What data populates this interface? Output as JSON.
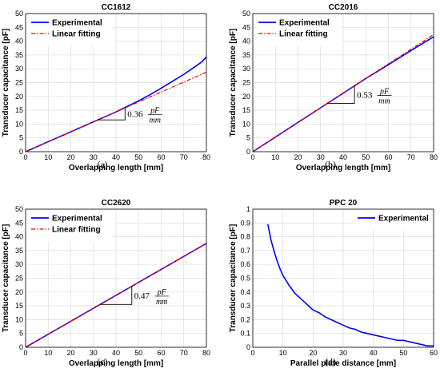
{
  "chart_data": [
    {
      "panel": "a",
      "type": "line",
      "title": "CC1612",
      "caption": "(a)",
      "xlabel": "Overlapping length [mm]",
      "ylabel": "Transducer capacitance [pF]",
      "xlim": [
        0,
        80
      ],
      "ylim": [
        0,
        50
      ],
      "xticks": [
        0,
        10,
        20,
        30,
        40,
        50,
        60,
        70,
        80
      ],
      "yticks": [
        0,
        5,
        10,
        15,
        20,
        25,
        30,
        35,
        40,
        45,
        50
      ],
      "grid": true,
      "legend": "top-left",
      "series": [
        {
          "name": "Experimental",
          "color": "#0000ff",
          "style": "solid",
          "x": [
            0,
            10,
            20,
            30,
            40,
            45,
            50,
            55,
            60,
            65,
            70,
            75,
            78,
            80
          ],
          "y": [
            0,
            3.6,
            7.2,
            10.8,
            14.4,
            16.4,
            18.4,
            20.6,
            23.0,
            25.5,
            28.0,
            30.8,
            32.5,
            34.3
          ]
        },
        {
          "name": "Linear fitting",
          "color": "#ff0000",
          "style": "dashdot",
          "x": [
            0,
            80
          ],
          "y": [
            0,
            28.8
          ]
        }
      ],
      "annotation": {
        "value": "0.36",
        "unit_num": "pF",
        "unit_den": "mm",
        "x0": 32,
        "x1": 44,
        "base": "fit"
      }
    },
    {
      "panel": "b",
      "type": "line",
      "title": "CC2016",
      "caption": "(b)",
      "xlabel": "Overlapping length [mm]",
      "ylabel": "Transducer capacitance [pF]",
      "xlim": [
        0,
        80
      ],
      "ylim": [
        0,
        50
      ],
      "xticks": [
        0,
        10,
        20,
        30,
        40,
        50,
        60,
        70,
        80
      ],
      "yticks": [
        0,
        5,
        10,
        15,
        20,
        25,
        30,
        35,
        40,
        45,
        50
      ],
      "grid": true,
      "legend": "top-left",
      "series": [
        {
          "name": "Experimental",
          "color": "#0000ff",
          "style": "solid",
          "x": [
            0,
            10,
            20,
            30,
            40,
            50,
            60,
            70,
            80
          ],
          "y": [
            0,
            5.3,
            10.6,
            15.9,
            21.2,
            26.5,
            31.5,
            36.6,
            41.6
          ]
        },
        {
          "name": "Linear fitting",
          "color": "#ff0000",
          "style": "dashdot",
          "x": [
            0,
            80
          ],
          "y": [
            0,
            42.4
          ]
        }
      ],
      "annotation": {
        "value": "0.53",
        "unit_num": "pF",
        "unit_den": "mm",
        "x0": 33,
        "x1": 45,
        "base": "fit"
      }
    },
    {
      "panel": "c",
      "type": "line",
      "title": "CC2620",
      "caption": "(c)",
      "xlabel": "Overlapping length [mm]",
      "ylabel": "Transducer capacitance [pF]",
      "xlim": [
        0,
        80
      ],
      "ylim": [
        0,
        50
      ],
      "xticks": [
        0,
        10,
        20,
        30,
        40,
        50,
        60,
        70,
        80
      ],
      "yticks": [
        0,
        5,
        10,
        15,
        20,
        25,
        30,
        35,
        40,
        45,
        50
      ],
      "grid": true,
      "legend": "top-left",
      "series": [
        {
          "name": "Experimental",
          "color": "#0000ff",
          "style": "solid",
          "x": [
            0,
            10,
            20,
            30,
            40,
            50,
            60,
            70,
            80
          ],
          "y": [
            0,
            4.7,
            9.4,
            14.1,
            18.8,
            23.5,
            28.2,
            32.9,
            37.6
          ]
        },
        {
          "name": "Linear fitting",
          "color": "#ff0000",
          "style": "dashdot",
          "x": [
            0,
            80
          ],
          "y": [
            0,
            37.6
          ]
        }
      ],
      "annotation": {
        "value": "0.47",
        "unit_num": "pF",
        "unit_den": "mm",
        "x0": 33,
        "x1": 47,
        "base": "fit"
      }
    },
    {
      "panel": "d",
      "type": "line",
      "title": "PPC 20",
      "caption": "(d)",
      "xlabel": "Parallel plate distance [mm]",
      "ylabel": "Transducer capacitance [pF]",
      "xlim": [
        0,
        60
      ],
      "ylim": [
        0,
        1
      ],
      "xticks": [
        0,
        10,
        20,
        30,
        40,
        50,
        60
      ],
      "yticks": [
        0,
        0.1,
        0.2,
        0.3,
        0.4,
        0.5,
        0.6,
        0.7,
        0.8,
        0.9,
        1
      ],
      "grid": true,
      "legend": "top-right",
      "series": [
        {
          "name": "Experimental",
          "color": "#0000ff",
          "style": "solid",
          "x": [
            5,
            6,
            7,
            8,
            9,
            10,
            12,
            14,
            16,
            18,
            20,
            22,
            24,
            26,
            28,
            30,
            32,
            34,
            36,
            38,
            40,
            42,
            44,
            46,
            48,
            50,
            52,
            54,
            56,
            58,
            60
          ],
          "y": [
            0.89,
            0.78,
            0.7,
            0.63,
            0.57,
            0.52,
            0.45,
            0.39,
            0.35,
            0.31,
            0.27,
            0.25,
            0.22,
            0.2,
            0.18,
            0.16,
            0.14,
            0.13,
            0.11,
            0.1,
            0.09,
            0.08,
            0.07,
            0.06,
            0.05,
            0.05,
            0.04,
            0.03,
            0.02,
            0.01,
            0.01
          ]
        }
      ]
    }
  ]
}
